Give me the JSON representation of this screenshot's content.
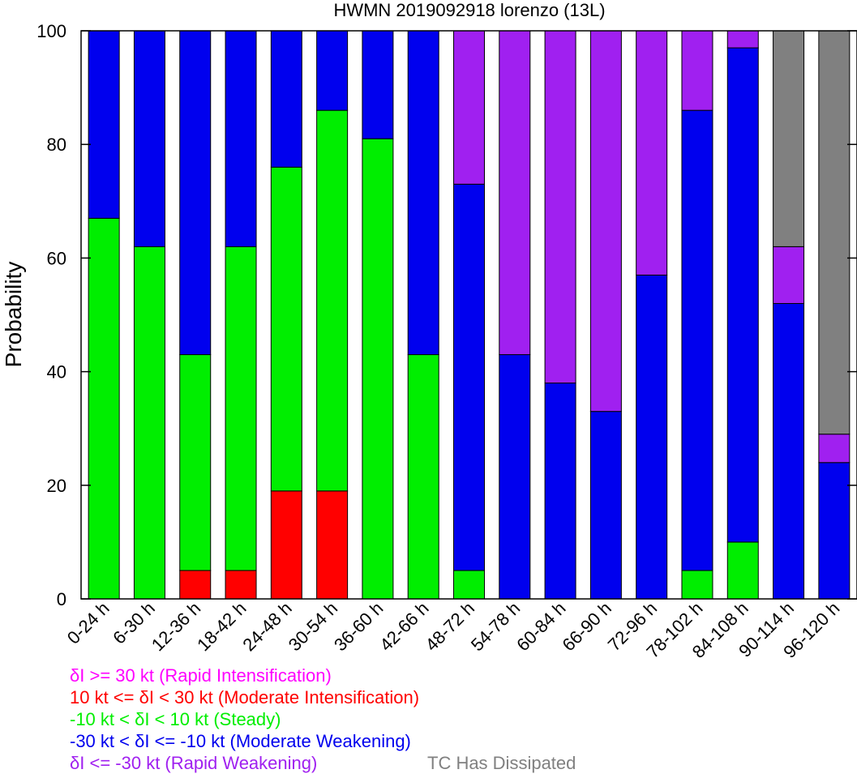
{
  "chart_data": {
    "type": "bar",
    "stacked": true,
    "title": "HWMN 2019092918 lorenzo (13L)",
    "xlabel": "",
    "ylabel": "Probability",
    "ylim": [
      0,
      100
    ],
    "yticks": [
      "0",
      "20",
      "40",
      "60",
      "80",
      "100"
    ],
    "grid": false,
    "categories": [
      "0-24 h",
      "6-30 h",
      "12-36 h",
      "18-42 h",
      "24-48 h",
      "30-54 h",
      "36-60 h",
      "42-66 h",
      "48-72 h",
      "54-78 h",
      "60-84 h",
      "66-90 h",
      "72-96 h",
      "78-102 h",
      "84-108 h",
      "90-114 h",
      "96-120 h"
    ],
    "series": [
      {
        "key": "ri",
        "color": "#ff00ff",
        "values": [
          0,
          0,
          0,
          0,
          0,
          0,
          0,
          0,
          0,
          0,
          0,
          0,
          0,
          0,
          0,
          0,
          0
        ]
      },
      {
        "key": "mi",
        "color": "#ff0000",
        "values": [
          0,
          0,
          5,
          5,
          19,
          19,
          0,
          0,
          0,
          0,
          0,
          0,
          0,
          0,
          0,
          0,
          0
        ]
      },
      {
        "key": "steady",
        "color": "#00ee00",
        "values": [
          67,
          62,
          38,
          57,
          57,
          67,
          81,
          43,
          5,
          0,
          0,
          0,
          0,
          5,
          10,
          0,
          0
        ]
      },
      {
        "key": "mw",
        "color": "#0000ee",
        "values": [
          33,
          38,
          57,
          38,
          24,
          14,
          19,
          57,
          68,
          43,
          38,
          33,
          57,
          81,
          87,
          52,
          24
        ]
      },
      {
        "key": "rw",
        "color": "#a020f0",
        "values": [
          0,
          0,
          0,
          0,
          0,
          0,
          0,
          0,
          27,
          57,
          62,
          67,
          43,
          14,
          3,
          10,
          5
        ]
      },
      {
        "key": "dissipated",
        "color": "#808080",
        "values": [
          0,
          0,
          0,
          0,
          0,
          0,
          0,
          0,
          0,
          0,
          0,
          0,
          0,
          0,
          0,
          38,
          71
        ]
      }
    ]
  },
  "legend": [
    {
      "text": "δI >= 30 kt (Rapid Intensification)",
      "color": "#ff00ff"
    },
    {
      "text": "10 kt <= δI < 30 kt (Moderate Intensification)",
      "color": "#ff0000"
    },
    {
      "text": "-10 kt < δI < 10 kt (Steady)",
      "color": "#00ee00"
    },
    {
      "text": "-30 kt < δI <= -10 kt (Moderate Weakening)",
      "color": "#0000ee"
    },
    {
      "text": "δI <= -30 kt (Rapid Weakening)",
      "color": "#a020f0"
    },
    {
      "text": "TC Has Dissipated",
      "color": "#808080"
    }
  ]
}
